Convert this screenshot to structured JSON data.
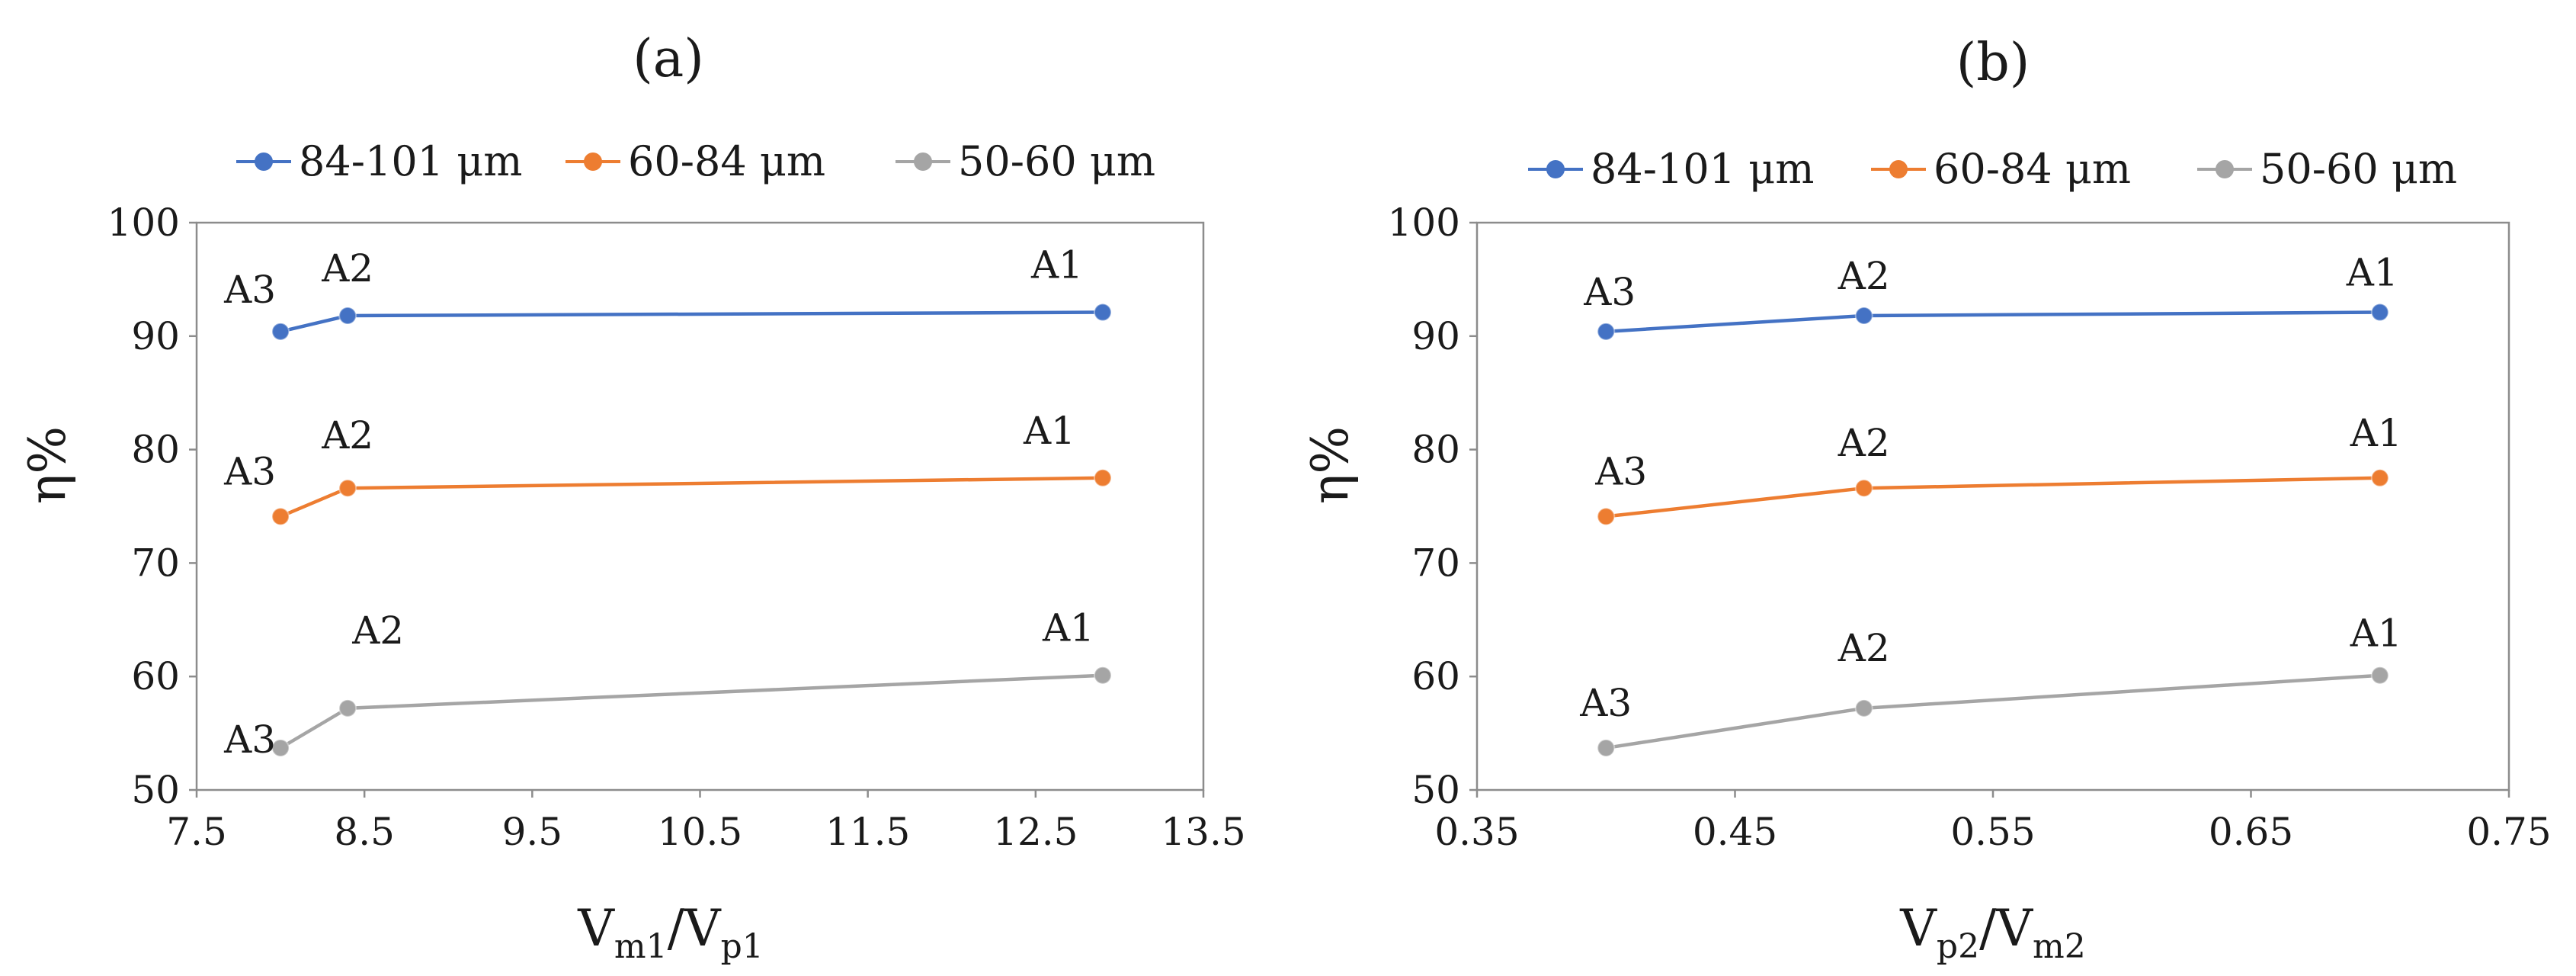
{
  "chart_data": [
    {
      "type": "line",
      "title": "(a)",
      "xlabel": {
        "main1": "V",
        "sub1": "m1",
        "sep": "/",
        "main2": "V",
        "sub2": "p1"
      },
      "ylabel": "η%",
      "xlim": [
        7.5,
        13.5
      ],
      "ylim": [
        50,
        100
      ],
      "xticks": [
        "7.5",
        "8.5",
        "9.5",
        "10.5",
        "11.5",
        "12.5",
        "13.5"
      ],
      "xtick_values": [
        7.5,
        8.5,
        9.5,
        10.5,
        11.5,
        12.5,
        13.5
      ],
      "yticks": [
        "50",
        "60",
        "70",
        "80",
        "90",
        "100"
      ],
      "ytick_values": [
        50,
        60,
        70,
        80,
        90,
        100
      ],
      "legend_position": "top",
      "series": [
        {
          "name": "84-101 μm",
          "color": "#4472C4",
          "x": [
            8.0,
            8.4,
            12.9
          ],
          "y": [
            90.4,
            91.8,
            92.1
          ],
          "labels": [
            "A3",
            "A2",
            "A1"
          ]
        },
        {
          "name": "60-84 μm",
          "color": "#ED7D31",
          "x": [
            8.0,
            8.4,
            12.9
          ],
          "y": [
            74.1,
            76.6,
            77.5
          ],
          "labels": [
            "A3",
            "A2",
            "A1"
          ]
        },
        {
          "name": "50-60 μm",
          "color": "#A5A5A5",
          "x": [
            8.0,
            8.4,
            12.9
          ],
          "y": [
            53.7,
            57.2,
            60.1
          ],
          "labels": [
            "A3",
            "A2",
            "A1"
          ]
        }
      ]
    },
    {
      "type": "line",
      "title": "(b)",
      "xlabel": {
        "main1": "V",
        "sub1": "p2",
        "sep": "/",
        "main2": "V",
        "sub2": "m2"
      },
      "ylabel": "η%",
      "xlim": [
        0.35,
        0.75
      ],
      "ylim": [
        50,
        100
      ],
      "xticks": [
        "0.35",
        "0.45",
        "0.55",
        "0.65",
        "0.75"
      ],
      "xtick_values": [
        0.35,
        0.45,
        0.55,
        0.65,
        0.75
      ],
      "yticks": [
        "50",
        "60",
        "70",
        "80",
        "90",
        "100"
      ],
      "ytick_values": [
        50,
        60,
        70,
        80,
        90,
        100
      ],
      "legend_position": "top",
      "series": [
        {
          "name": "84-101 μm",
          "color": "#4472C4",
          "x": [
            0.4,
            0.5,
            0.7
          ],
          "y": [
            90.4,
            91.8,
            92.1
          ],
          "labels": [
            "A3",
            "A2",
            "A1"
          ]
        },
        {
          "name": "60-84 μm",
          "color": "#ED7D31",
          "x": [
            0.4,
            0.5,
            0.7
          ],
          "y": [
            74.1,
            76.6,
            77.5
          ],
          "labels": [
            "A3",
            "A2",
            "A1"
          ]
        },
        {
          "name": "50-60 μm",
          "color": "#A5A5A5",
          "x": [
            0.4,
            0.5,
            0.7
          ],
          "y": [
            53.7,
            57.2,
            60.1
          ],
          "labels": [
            "A3",
            "A2",
            "A1"
          ]
        }
      ]
    }
  ]
}
